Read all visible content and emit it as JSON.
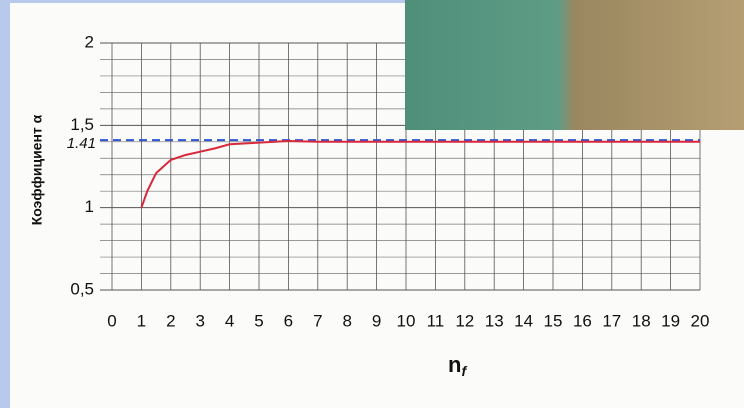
{
  "chart_data": {
    "type": "line",
    "ylabel": "Коэффициент α",
    "xlabel": {
      "main": "n",
      "sub": "f"
    },
    "x": [
      1,
      1.2,
      1.5,
      2,
      2.5,
      3,
      3.5,
      4,
      5,
      6,
      7,
      8,
      9,
      10,
      11,
      12,
      13,
      14,
      15,
      16,
      17,
      18,
      19,
      20
    ],
    "series": [
      {
        "color": "#d8283a",
        "values": [
          1.0,
          1.1,
          1.21,
          1.29,
          1.32,
          1.34,
          1.36,
          1.385,
          1.395,
          1.405,
          1.4,
          1.4,
          1.4,
          1.4,
          1.4,
          1.4,
          1.4,
          1.4,
          1.4,
          1.4,
          1.4,
          1.4,
          1.4,
          1.4
        ]
      }
    ],
    "reference_line": {
      "value": 1.41,
      "color": "#2e55d0"
    },
    "xlim": [
      0,
      20
    ],
    "ylim": [
      0.5,
      2
    ],
    "xticks": [
      0,
      1,
      2,
      3,
      4,
      5,
      6,
      7,
      8,
      9,
      10,
      11,
      12,
      13,
      14,
      15,
      16,
      17,
      18,
      19,
      20
    ],
    "yticks": [
      {
        "value": 0.5,
        "label": "0,5"
      },
      1,
      {
        "value": 1.5,
        "label": "1,5"
      },
      2
    ],
    "grid": true
  }
}
